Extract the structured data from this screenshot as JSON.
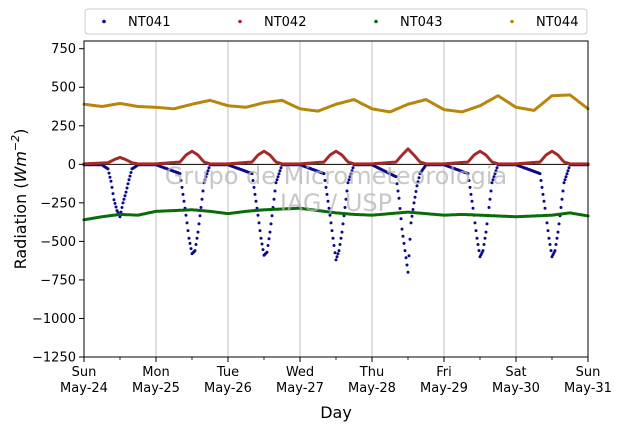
{
  "chart_data": {
    "type": "scatter",
    "xlabel": "Day",
    "ylabel": "Radiation (",
    "ylabel_unit": "Wm",
    "ylabel_exp": "−2",
    "ylabel_close": ")",
    "ylim": [
      -1250,
      800
    ],
    "xlim": [
      "2020-05-24",
      "2020-05-31"
    ],
    "grid": "vertical",
    "legend_position": "top",
    "watermark": [
      "Grupo de Micrometeorologia",
      "IAG / USP"
    ],
    "x_ticks": [
      {
        "day": "Sun",
        "date": "May-24"
      },
      {
        "day": "Mon",
        "date": "May-25"
      },
      {
        "day": "Tue",
        "date": "May-26"
      },
      {
        "day": "Wed",
        "date": "May-27"
      },
      {
        "day": "Thu",
        "date": "May-28"
      },
      {
        "day": "Fri",
        "date": "May-29"
      },
      {
        "day": "Sat",
        "date": "May-30"
      },
      {
        "day": "Sun",
        "date": "May-31"
      }
    ],
    "y_ticks": [
      750,
      500,
      250,
      0,
      -250,
      -500,
      -750,
      -1000,
      -1250
    ],
    "y_tick_labels": [
      "750",
      "500",
      "250",
      "0",
      "−250",
      "−500",
      "−750",
      "−1000",
      "−1250"
    ],
    "series": [
      {
        "name": "NT041",
        "color": "#0a0a8a",
        "points": [
          [
            "2020-05-24 00:00",
            -3
          ],
          [
            "2020-05-24 06:00",
            -3
          ],
          [
            "2020-05-24 08:00",
            -30
          ],
          [
            "2020-05-24 09:00",
            -110
          ],
          [
            "2020-05-24 10:00",
            -230
          ],
          [
            "2020-05-24 11:00",
            -300
          ],
          [
            "2020-05-24 12:00",
            -340
          ],
          [
            "2020-05-24 13:00",
            -250
          ],
          [
            "2020-05-24 14:00",
            -180
          ],
          [
            "2020-05-24 15:00",
            -100
          ],
          [
            "2020-05-24 16:00",
            -30
          ],
          [
            "2020-05-24 18:00",
            -3
          ],
          [
            "2020-05-25 00:00",
            -3
          ],
          [
            "2020-05-25 08:00",
            -60
          ],
          [
            "2020-05-25 10:00",
            -330
          ],
          [
            "2020-05-25 11:00",
            -480
          ],
          [
            "2020-05-25 12:00",
            -580
          ],
          [
            "2020-05-25 13:00",
            -560
          ],
          [
            "2020-05-25 14:00",
            -440
          ],
          [
            "2020-05-25 16:00",
            -120
          ],
          [
            "2020-05-25 18:00",
            -3
          ],
          [
            "2020-05-26 00:00",
            -3
          ],
          [
            "2020-05-26 08:00",
            -60
          ],
          [
            "2020-05-26 10:00",
            -330
          ],
          [
            "2020-05-26 11:00",
            -480
          ],
          [
            "2020-05-26 12:00",
            -590
          ],
          [
            "2020-05-26 13:00",
            -570
          ],
          [
            "2020-05-26 14:00",
            -440
          ],
          [
            "2020-05-26 16:00",
            -120
          ],
          [
            "2020-05-26 18:00",
            -3
          ],
          [
            "2020-05-27 00:00",
            -3
          ],
          [
            "2020-05-27 08:00",
            -60
          ],
          [
            "2020-05-27 10:00",
            -330
          ],
          [
            "2020-05-27 11:00",
            -480
          ],
          [
            "2020-05-27 12:00",
            -620
          ],
          [
            "2020-05-27 13:00",
            -560
          ],
          [
            "2020-05-27 14:00",
            -440
          ],
          [
            "2020-05-27 16:00",
            -120
          ],
          [
            "2020-05-27 18:00",
            -3
          ],
          [
            "2020-05-28 00:00",
            -3
          ],
          [
            "2020-05-28 08:00",
            -80
          ],
          [
            "2020-05-28 09:00",
            -220
          ],
          [
            "2020-05-28 10:00",
            -420
          ],
          [
            "2020-05-28 11:00",
            -560
          ],
          [
            "2020-05-28 12:00",
            -700
          ],
          [
            "2020-05-28 13:00",
            -380
          ],
          [
            "2020-05-28 14:00",
            -250
          ],
          [
            "2020-05-28 15:00",
            -140
          ],
          [
            "2020-05-28 16:00",
            -60
          ],
          [
            "2020-05-28 18:00",
            -3
          ],
          [
            "2020-05-29 00:00",
            -3
          ],
          [
            "2020-05-29 08:00",
            -60
          ],
          [
            "2020-05-29 10:00",
            -330
          ],
          [
            "2020-05-29 11:00",
            -480
          ],
          [
            "2020-05-29 12:00",
            -600
          ],
          [
            "2020-05-29 13:00",
            -560
          ],
          [
            "2020-05-29 14:00",
            -440
          ],
          [
            "2020-05-29 16:00",
            -120
          ],
          [
            "2020-05-29 18:00",
            -3
          ],
          [
            "2020-05-30 00:00",
            -3
          ],
          [
            "2020-05-30 08:00",
            -60
          ],
          [
            "2020-05-30 10:00",
            -330
          ],
          [
            "2020-05-30 11:00",
            -480
          ],
          [
            "2020-05-30 12:00",
            -600
          ],
          [
            "2020-05-30 13:00",
            -560
          ],
          [
            "2020-05-30 14:00",
            -440
          ],
          [
            "2020-05-30 16:00",
            -120
          ],
          [
            "2020-05-30 18:00",
            -3
          ],
          [
            "2020-05-31 00:00",
            -3
          ]
        ]
      },
      {
        "name": "NT042",
        "color": "#a52a2a",
        "points": [
          [
            "2020-05-24 00:00",
            3
          ],
          [
            "2020-05-24 08:00",
            10
          ],
          [
            "2020-05-24 10:00",
            30
          ],
          [
            "2020-05-24 12:00",
            45
          ],
          [
            "2020-05-24 14:00",
            30
          ],
          [
            "2020-05-24 16:00",
            10
          ],
          [
            "2020-05-24 18:00",
            3
          ],
          [
            "2020-05-25 00:00",
            3
          ],
          [
            "2020-05-25 08:00",
            15
          ],
          [
            "2020-05-25 10:00",
            60
          ],
          [
            "2020-05-25 12:00",
            85
          ],
          [
            "2020-05-25 14:00",
            60
          ],
          [
            "2020-05-25 16:00",
            15
          ],
          [
            "2020-05-25 18:00",
            3
          ],
          [
            "2020-05-26 00:00",
            3
          ],
          [
            "2020-05-26 08:00",
            15
          ],
          [
            "2020-05-26 10:00",
            60
          ],
          [
            "2020-05-26 12:00",
            85
          ],
          [
            "2020-05-26 14:00",
            60
          ],
          [
            "2020-05-26 16:00",
            15
          ],
          [
            "2020-05-26 18:00",
            3
          ],
          [
            "2020-05-27 00:00",
            3
          ],
          [
            "2020-05-27 08:00",
            15
          ],
          [
            "2020-05-27 10:00",
            60
          ],
          [
            "2020-05-27 12:00",
            85
          ],
          [
            "2020-05-27 14:00",
            60
          ],
          [
            "2020-05-27 16:00",
            15
          ],
          [
            "2020-05-27 18:00",
            3
          ],
          [
            "2020-05-28 00:00",
            3
          ],
          [
            "2020-05-28 08:00",
            15
          ],
          [
            "2020-05-28 10:00",
            60
          ],
          [
            "2020-05-28 12:00",
            100
          ],
          [
            "2020-05-28 14:00",
            60
          ],
          [
            "2020-05-28 16:00",
            15
          ],
          [
            "2020-05-28 18:00",
            3
          ],
          [
            "2020-05-29 00:00",
            3
          ],
          [
            "2020-05-29 08:00",
            15
          ],
          [
            "2020-05-29 10:00",
            60
          ],
          [
            "2020-05-29 12:00",
            85
          ],
          [
            "2020-05-29 14:00",
            60
          ],
          [
            "2020-05-29 16:00",
            15
          ],
          [
            "2020-05-29 18:00",
            3
          ],
          [
            "2020-05-30 00:00",
            3
          ],
          [
            "2020-05-30 08:00",
            15
          ],
          [
            "2020-05-30 10:00",
            60
          ],
          [
            "2020-05-30 12:00",
            85
          ],
          [
            "2020-05-30 14:00",
            60
          ],
          [
            "2020-05-30 16:00",
            15
          ],
          [
            "2020-05-30 18:00",
            3
          ],
          [
            "2020-05-31 00:00",
            3
          ]
        ]
      },
      {
        "name": "NT043",
        "color": "#0b6b0b",
        "points": [
          [
            "2020-05-24 00:00",
            -360
          ],
          [
            "2020-05-24 06:00",
            -340
          ],
          [
            "2020-05-24 12:00",
            -325
          ],
          [
            "2020-05-24 18:00",
            -330
          ],
          [
            "2020-05-25 00:00",
            -305
          ],
          [
            "2020-05-25 06:00",
            -300
          ],
          [
            "2020-05-25 12:00",
            -295
          ],
          [
            "2020-05-25 18:00",
            -305
          ],
          [
            "2020-05-26 00:00",
            -320
          ],
          [
            "2020-05-26 06:00",
            -305
          ],
          [
            "2020-05-26 12:00",
            -295
          ],
          [
            "2020-05-26 18:00",
            -290
          ],
          [
            "2020-05-27 00:00",
            -285
          ],
          [
            "2020-05-27 06:00",
            -300
          ],
          [
            "2020-05-27 12:00",
            -315
          ],
          [
            "2020-05-27 18:00",
            -325
          ],
          [
            "2020-05-28 00:00",
            -330
          ],
          [
            "2020-05-28 06:00",
            -320
          ],
          [
            "2020-05-28 12:00",
            -310
          ],
          [
            "2020-05-28 18:00",
            -320
          ],
          [
            "2020-05-29 00:00",
            -330
          ],
          [
            "2020-05-29 06:00",
            -325
          ],
          [
            "2020-05-29 12:00",
            -330
          ],
          [
            "2020-05-29 18:00",
            -335
          ],
          [
            "2020-05-30 00:00",
            -340
          ],
          [
            "2020-05-30 06:00",
            -335
          ],
          [
            "2020-05-30 12:00",
            -330
          ],
          [
            "2020-05-30 18:00",
            -315
          ],
          [
            "2020-05-31 00:00",
            -335
          ]
        ]
      },
      {
        "name": "NT044",
        "color": "#b8860b",
        "points": [
          [
            "2020-05-24 00:00",
            390
          ],
          [
            "2020-05-24 06:00",
            375
          ],
          [
            "2020-05-24 12:00",
            395
          ],
          [
            "2020-05-24 18:00",
            375
          ],
          [
            "2020-05-25 00:00",
            370
          ],
          [
            "2020-05-25 06:00",
            360
          ],
          [
            "2020-05-25 12:00",
            390
          ],
          [
            "2020-05-25 18:00",
            415
          ],
          [
            "2020-05-26 00:00",
            380
          ],
          [
            "2020-05-26 06:00",
            370
          ],
          [
            "2020-05-26 12:00",
            400
          ],
          [
            "2020-05-26 18:00",
            415
          ],
          [
            "2020-05-27 00:00",
            360
          ],
          [
            "2020-05-27 06:00",
            345
          ],
          [
            "2020-05-27 12:00",
            390
          ],
          [
            "2020-05-27 18:00",
            420
          ],
          [
            "2020-05-28 00:00",
            360
          ],
          [
            "2020-05-28 06:00",
            340
          ],
          [
            "2020-05-28 12:00",
            390
          ],
          [
            "2020-05-28 18:00",
            420
          ],
          [
            "2020-05-29 00:00",
            355
          ],
          [
            "2020-05-29 06:00",
            340
          ],
          [
            "2020-05-29 12:00",
            380
          ],
          [
            "2020-05-29 18:00",
            445
          ],
          [
            "2020-05-30 00:00",
            370
          ],
          [
            "2020-05-30 06:00",
            350
          ],
          [
            "2020-05-30 12:00",
            445
          ],
          [
            "2020-05-30 18:00",
            450
          ],
          [
            "2020-05-31 00:00",
            360
          ]
        ]
      }
    ]
  }
}
